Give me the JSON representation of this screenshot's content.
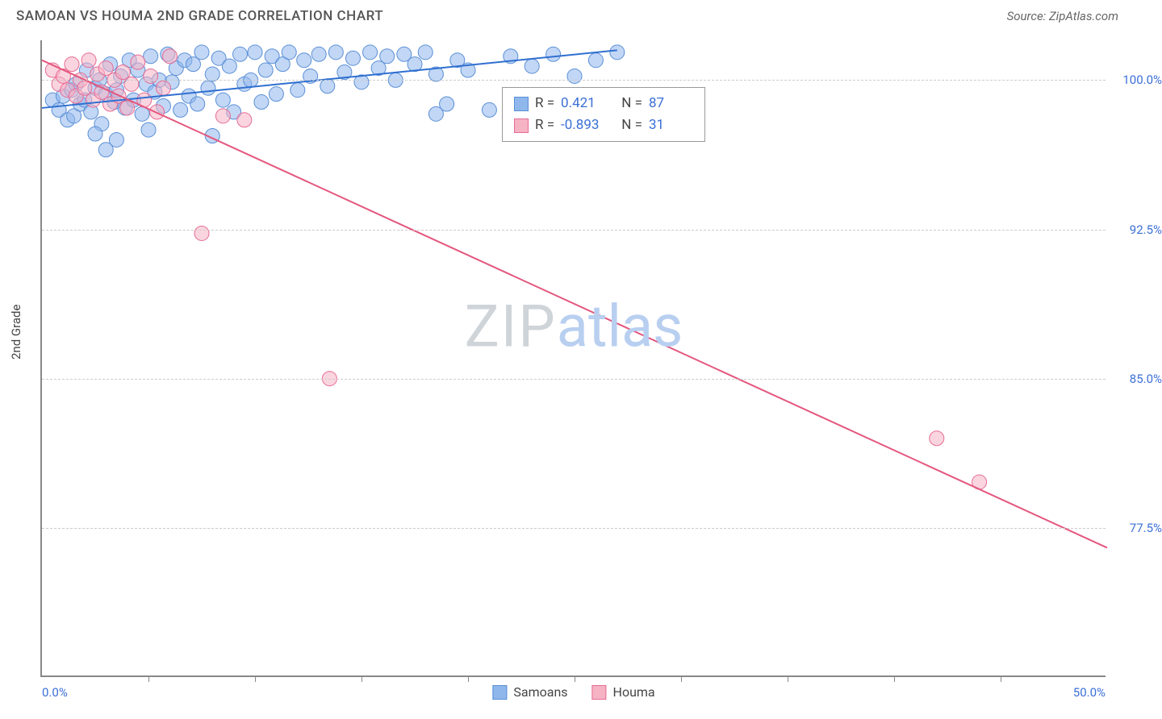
{
  "title": "SAMOAN VS HOUMA 2ND GRADE CORRELATION CHART",
  "source": "Source: ZipAtlas.com",
  "y_axis_title": "2nd Grade",
  "watermark": {
    "part1": "ZIP",
    "part2": "atlas"
  },
  "chart": {
    "type": "scatter",
    "xlim": [
      0,
      50
    ],
    "ylim": [
      70,
      102
    ],
    "background_color": "#ffffff",
    "grid_color": "#cccccc",
    "x_labels": {
      "min": "0.0%",
      "max": "50.0%"
    },
    "x_ticks": [
      5,
      10,
      15,
      20,
      25,
      30,
      35,
      40,
      45
    ],
    "y_gridlines": [
      {
        "value": 100.0,
        "label": "100.0%"
      },
      {
        "value": 92.5,
        "label": "92.5%"
      },
      {
        "value": 85.0,
        "label": "85.0%"
      },
      {
        "value": 77.5,
        "label": "77.5%"
      }
    ],
    "series": [
      {
        "name": "Samoans",
        "color_fill": "#8fb7ec",
        "color_stroke": "#5a8fd6",
        "fill_opacity": 0.55,
        "marker_radius": 9,
        "R": "0.421",
        "N": "87",
        "trend": {
          "x1": 0,
          "y1": 98.6,
          "x2": 27,
          "y2": 101.5,
          "color": "#2f6fd0",
          "width": 2
        },
        "points": [
          [
            0.5,
            99.0
          ],
          [
            0.8,
            98.5
          ],
          [
            1.0,
            99.2
          ],
          [
            1.2,
            98.0
          ],
          [
            1.4,
            99.5
          ],
          [
            1.5,
            98.2
          ],
          [
            1.6,
            99.8
          ],
          [
            1.8,
            98.8
          ],
          [
            2.0,
            99.0
          ],
          [
            2.1,
            100.5
          ],
          [
            2.3,
            98.4
          ],
          [
            2.5,
            99.6
          ],
          [
            2.7,
            100.0
          ],
          [
            2.8,
            97.8
          ],
          [
            3.0,
            99.3
          ],
          [
            3.2,
            100.8
          ],
          [
            3.4,
            98.9
          ],
          [
            3.5,
            99.5
          ],
          [
            3.7,
            100.2
          ],
          [
            3.9,
            98.6
          ],
          [
            4.1,
            101.0
          ],
          [
            4.3,
            99.0
          ],
          [
            4.5,
            100.5
          ],
          [
            4.7,
            98.3
          ],
          [
            4.9,
            99.8
          ],
          [
            5.1,
            101.2
          ],
          [
            5.3,
            99.4
          ],
          [
            5.5,
            100.0
          ],
          [
            5.7,
            98.7
          ],
          [
            5.9,
            101.3
          ],
          [
            6.1,
            99.9
          ],
          [
            6.3,
            100.6
          ],
          [
            6.5,
            98.5
          ],
          [
            6.7,
            101.0
          ],
          [
            6.9,
            99.2
          ],
          [
            7.1,
            100.8
          ],
          [
            7.3,
            98.8
          ],
          [
            7.5,
            101.4
          ],
          [
            7.8,
            99.6
          ],
          [
            8.0,
            100.3
          ],
          [
            8.3,
            101.1
          ],
          [
            8.5,
            99.0
          ],
          [
            8.8,
            100.7
          ],
          [
            9.0,
            98.4
          ],
          [
            9.3,
            101.3
          ],
          [
            9.5,
            99.8
          ],
          [
            9.8,
            100.0
          ],
          [
            10.0,
            101.4
          ],
          [
            10.3,
            98.9
          ],
          [
            10.5,
            100.5
          ],
          [
            10.8,
            101.2
          ],
          [
            11.0,
            99.3
          ],
          [
            11.3,
            100.8
          ],
          [
            11.6,
            101.4
          ],
          [
            12.0,
            99.5
          ],
          [
            12.3,
            101.0
          ],
          [
            12.6,
            100.2
          ],
          [
            13.0,
            101.3
          ],
          [
            13.4,
            99.7
          ],
          [
            13.8,
            101.4
          ],
          [
            14.2,
            100.4
          ],
          [
            14.6,
            101.1
          ],
          [
            15.0,
            99.9
          ],
          [
            15.4,
            101.4
          ],
          [
            15.8,
            100.6
          ],
          [
            16.2,
            101.2
          ],
          [
            16.6,
            100.0
          ],
          [
            17.0,
            101.3
          ],
          [
            17.5,
            100.8
          ],
          [
            18.0,
            101.4
          ],
          [
            18.5,
            100.3
          ],
          [
            19.0,
            98.8
          ],
          [
            19.5,
            101.0
          ],
          [
            20.0,
            100.5
          ],
          [
            21.0,
            98.5
          ],
          [
            22.0,
            101.2
          ],
          [
            23.0,
            100.7
          ],
          [
            24.0,
            101.3
          ],
          [
            25.0,
            100.2
          ],
          [
            26.0,
            101.0
          ],
          [
            27.0,
            101.4
          ],
          [
            3.0,
            96.5
          ],
          [
            3.5,
            97.0
          ],
          [
            8.0,
            97.2
          ],
          [
            5.0,
            97.5
          ],
          [
            18.5,
            98.3
          ],
          [
            2.5,
            97.3
          ]
        ]
      },
      {
        "name": "Houma",
        "color_fill": "#f5b3c4",
        "color_stroke": "#e76b94",
        "fill_opacity": 0.55,
        "marker_radius": 9,
        "R": "-0.893",
        "N": "31",
        "trend": {
          "x1": 0,
          "y1": 101.0,
          "x2": 50,
          "y2": 76.5,
          "color": "#e4577e",
          "width": 2
        },
        "points": [
          [
            0.5,
            100.5
          ],
          [
            0.8,
            99.8
          ],
          [
            1.0,
            100.2
          ],
          [
            1.2,
            99.5
          ],
          [
            1.4,
            100.8
          ],
          [
            1.6,
            99.2
          ],
          [
            1.8,
            100.0
          ],
          [
            2.0,
            99.6
          ],
          [
            2.2,
            101.0
          ],
          [
            2.4,
            99.0
          ],
          [
            2.6,
            100.3
          ],
          [
            2.8,
            99.4
          ],
          [
            3.0,
            100.6
          ],
          [
            3.2,
            98.8
          ],
          [
            3.4,
            100.0
          ],
          [
            3.6,
            99.2
          ],
          [
            3.8,
            100.4
          ],
          [
            4.0,
            98.6
          ],
          [
            4.2,
            99.8
          ],
          [
            4.5,
            100.9
          ],
          [
            4.8,
            99.0
          ],
          [
            5.1,
            100.2
          ],
          [
            5.4,
            98.4
          ],
          [
            5.7,
            99.6
          ],
          [
            6.0,
            101.2
          ],
          [
            7.5,
            92.3
          ],
          [
            8.5,
            98.2
          ],
          [
            9.5,
            98.0
          ],
          [
            13.5,
            85.0
          ],
          [
            42.0,
            82.0
          ],
          [
            44.0,
            79.8
          ]
        ]
      }
    ]
  },
  "legend": [
    {
      "label": "Samoans",
      "fill": "#8fb7ec",
      "stroke": "#5a8fd6"
    },
    {
      "label": "Houma",
      "fill": "#f5b3c4",
      "stroke": "#e76b94"
    }
  ]
}
